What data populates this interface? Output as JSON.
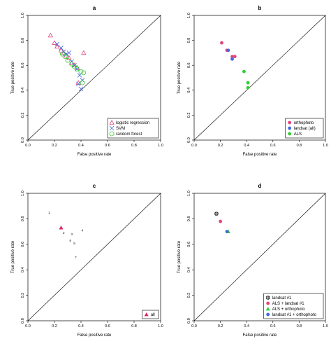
{
  "chart_data": [
    {
      "type": "scatter",
      "panel": "a",
      "xlabel": "False positive rate",
      "ylabel": "True positive rate",
      "xlim": [
        0,
        1
      ],
      "ylim": [
        0,
        1
      ],
      "xticks": [
        "0.0",
        "0.2",
        "0.4",
        "0.6",
        "0.8",
        "1.0"
      ],
      "yticks": [
        "0.0",
        "0.2",
        "0.4",
        "0.6",
        "0.8",
        "1.0"
      ],
      "diagonal": true,
      "legend_position": "bottom-right",
      "series": [
        {
          "name": "logistic regression",
          "marker": "triangle",
          "color": "#e0457b",
          "points": [
            [
              0.17,
              0.84
            ],
            [
              0.2,
              0.78
            ],
            [
              0.22,
              0.75
            ],
            [
              0.25,
              0.72
            ],
            [
              0.27,
              0.7
            ],
            [
              0.29,
              0.68
            ],
            [
              0.31,
              0.66
            ],
            [
              0.33,
              0.62
            ],
            [
              0.35,
              0.6
            ],
            [
              0.37,
              0.58
            ],
            [
              0.42,
              0.7
            ],
            [
              0.38,
              0.46
            ]
          ]
        },
        {
          "name": "SVM",
          "marker": "x",
          "color": "#4169e1",
          "points": [
            [
              0.22,
              0.77
            ],
            [
              0.25,
              0.74
            ],
            [
              0.27,
              0.71
            ],
            [
              0.29,
              0.69
            ],
            [
              0.31,
              0.7
            ],
            [
              0.33,
              0.63
            ],
            [
              0.35,
              0.6
            ],
            [
              0.37,
              0.57
            ],
            [
              0.39,
              0.52
            ],
            [
              0.41,
              0.48
            ],
            [
              0.4,
              0.41
            ],
            [
              0.38,
              0.45
            ]
          ]
        },
        {
          "name": "random forest",
          "marker": "circle",
          "color": "#32cd32",
          "points": [
            [
              0.26,
              0.69
            ],
            [
              0.28,
              0.67
            ],
            [
              0.3,
              0.64
            ],
            [
              0.33,
              0.61
            ],
            [
              0.35,
              0.59
            ],
            [
              0.37,
              0.57
            ],
            [
              0.4,
              0.55
            ],
            [
              0.42,
              0.54
            ],
            [
              0.41,
              0.46
            ]
          ]
        }
      ]
    },
    {
      "type": "scatter",
      "panel": "b",
      "xlabel": "False positive rate",
      "ylabel": "True positive rate",
      "xlim": [
        0,
        1
      ],
      "ylim": [
        0,
        1
      ],
      "xticks": [
        "0.0",
        "0.2",
        "0.4",
        "0.6",
        "0.8",
        "1.0"
      ],
      "yticks": [
        "0.0",
        "0.2",
        "0.4",
        "0.6",
        "0.8",
        "1.0"
      ],
      "diagonal": true,
      "legend_position": "bottom-right",
      "series": [
        {
          "name": "orthophoto",
          "marker": "dot",
          "color": "#e0457b",
          "points": [
            [
              0.21,
              0.78
            ],
            [
              0.25,
              0.72
            ],
            [
              0.29,
              0.67
            ],
            [
              0.31,
              0.67
            ]
          ]
        },
        {
          "name": "landsat (all)",
          "marker": "dot",
          "color": "#4169e1",
          "points": [
            [
              0.26,
              0.72
            ],
            [
              0.29,
              0.65
            ]
          ]
        },
        {
          "name": "ALS",
          "marker": "dot",
          "color": "#32cd32",
          "points": [
            [
              0.38,
              0.55
            ],
            [
              0.41,
              0.46
            ],
            [
              0.41,
              0.42
            ]
          ]
        }
      ]
    },
    {
      "type": "scatter",
      "panel": "c",
      "xlabel": "False positive rate",
      "ylabel": "True positive rate",
      "xlim": [
        0,
        1
      ],
      "ylim": [
        0,
        1
      ],
      "xticks": [
        "0.0",
        "0.2",
        "0.4",
        "0.6",
        "0.8",
        "1.0"
      ],
      "yticks": [
        "0.0",
        "0.2",
        "0.4",
        "0.6",
        "0.8",
        "1.0"
      ],
      "diagonal": true,
      "legend_position": "bottom-right",
      "series": [
        {
          "name": "all",
          "marker": "triangle-filled",
          "color": "#e0245e",
          "points": [
            [
              0.25,
              0.73
            ]
          ]
        }
      ],
      "labels": [
        {
          "text": "1",
          "x": 0.16,
          "y": 0.84
        },
        {
          "text": "2",
          "x": 0.27,
          "y": 0.68
        },
        {
          "text": "3",
          "x": 0.33,
          "y": 0.67
        },
        {
          "text": "4",
          "x": 0.41,
          "y": 0.7
        },
        {
          "text": "5",
          "x": 0.35,
          "y": 0.6
        },
        {
          "text": "6",
          "x": 0.32,
          "y": 0.62
        },
        {
          "text": "7",
          "x": 0.36,
          "y": 0.49
        }
      ]
    },
    {
      "type": "scatter",
      "panel": "d",
      "xlabel": "False positive rate",
      "ylabel": "True positive rate",
      "xlim": [
        0,
        1
      ],
      "ylim": [
        0,
        1
      ],
      "xticks": [
        "0.0",
        "0.2",
        "0.4",
        "0.6",
        "0.8",
        "1.0"
      ],
      "yticks": [
        "0.0",
        "0.2",
        "0.4",
        "0.6",
        "0.8",
        "1.0"
      ],
      "diagonal": true,
      "legend_position": "bottom-right",
      "series": [
        {
          "name": "landsat #1",
          "marker": "star",
          "color": "#000000",
          "points": [
            [
              0.17,
              0.84
            ]
          ]
        },
        {
          "name": "ALS + landsat #1",
          "marker": "dot",
          "color": "#e0457b",
          "points": [
            [
              0.2,
              0.78
            ]
          ]
        },
        {
          "name": "ALS + orthophoto",
          "marker": "triangle-filled",
          "color": "#32cd32",
          "points": [
            [
              0.26,
              0.7
            ]
          ]
        },
        {
          "name": "landsat #1 + orthophoto",
          "marker": "dot",
          "color": "#4169e1",
          "points": [
            [
              0.25,
              0.7
            ]
          ]
        }
      ]
    }
  ]
}
